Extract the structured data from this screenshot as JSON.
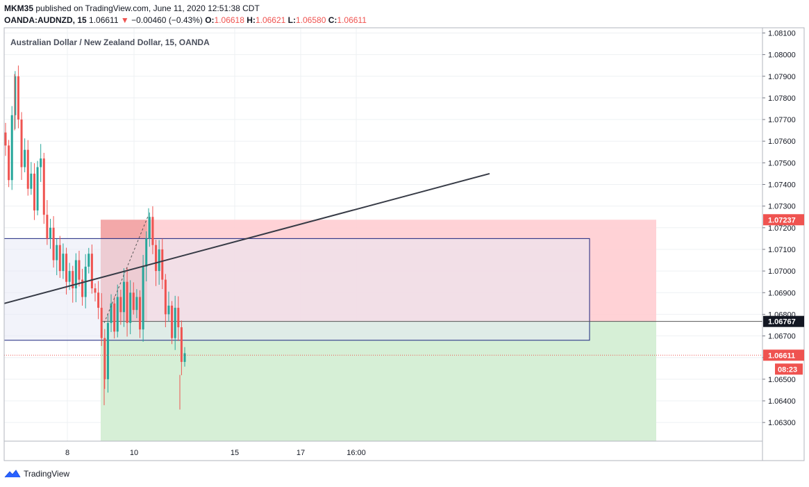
{
  "header": {
    "author": "MKM35",
    "published_text": "published on TradingView.com, June 11, 2020 12:51:38 CDT",
    "symbol": "OANDA:AUDNZD, 15",
    "last": "1.06611",
    "arrow": "▼",
    "change": "−0.00460 (−0.43%)",
    "o_label": "O:",
    "o_value": "1.06618",
    "h_label": "H:",
    "h_value": "1.06621",
    "l_label": "L:",
    "l_value": "1.06580",
    "c_label": "C:",
    "c_value": "1.06611"
  },
  "chart_title": "Australian Dollar / New Zealand Dollar, 15, OANDA",
  "footer": {
    "brand": "TradingView"
  },
  "colors": {
    "up": "#26a69a",
    "down": "#ef5350",
    "stop_zone": "#ffcdd2",
    "target_zone": "#d6efd6",
    "box_fill": "#e8eaf6",
    "box_border": "#1a237e",
    "trendline": "#363a45",
    "grid": "#eef0f3"
  },
  "chart_data": {
    "type": "candlestick",
    "title": "Australian Dollar / New Zealand Dollar, 15, OANDA",
    "y_axis": {
      "ticks": [
        "1.06300",
        "1.06400",
        "1.06500",
        "1.06600",
        "1.06700",
        "1.06800",
        "1.06900",
        "1.07000",
        "1.07100",
        "1.07200",
        "1.07300",
        "1.07400",
        "1.07500",
        "1.07600",
        "1.07700",
        "1.07800",
        "1.07900",
        "1.08000",
        "1.08100"
      ],
      "range": [
        1.062,
        1.0811
      ]
    },
    "x_axis": {
      "ticks": [
        "8",
        "10",
        "15",
        "17",
        "16:00"
      ]
    },
    "price_labels": [
      {
        "value": "1.07237",
        "price": 1.07237,
        "kind": "stop"
      },
      {
        "value": "1.06767",
        "price": 1.06767,
        "kind": "entry"
      },
      {
        "value": "1.06611",
        "price": 1.06611,
        "kind": "last"
      },
      {
        "value": "08:23",
        "kind": "countdown"
      }
    ],
    "position": {
      "direction": "short",
      "entry": 1.06767,
      "stop": 1.07237,
      "target": 1.062
    },
    "rectangle": {
      "top": 1.0715,
      "bottom": 1.0668
    },
    "trendline": {
      "start": 1.0685,
      "end": 1.0745
    },
    "dashed_line": {
      "start": 1.0676,
      "end": 1.0726
    },
    "path": [
      1.0758,
      1.0742,
      1.0772,
      1.079,
      1.077,
      1.0748,
      1.0756,
      1.0738,
      1.0745,
      1.0728,
      1.0748,
      1.0752,
      1.0726,
      1.0715,
      1.072,
      1.0705,
      1.0712,
      1.07,
      1.0708,
      1.0695,
      1.07,
      1.0692,
      1.0705,
      1.0696,
      1.0688,
      1.0702,
      1.0708,
      1.0692,
      1.069,
      1.0683,
      1.0669,
      1.065,
      1.0676,
      1.0685,
      1.0672,
      1.0688,
      1.0681,
      1.0695,
      1.0676,
      1.069,
      1.0682,
      1.0688,
      1.0673,
      1.0702,
      1.0715,
      1.0725,
      1.0712,
      1.07,
      1.071,
      1.0696,
      1.068,
      1.0684,
      1.0669,
      1.0683,
      1.0674,
      1.0658,
      1.0662
    ]
  }
}
